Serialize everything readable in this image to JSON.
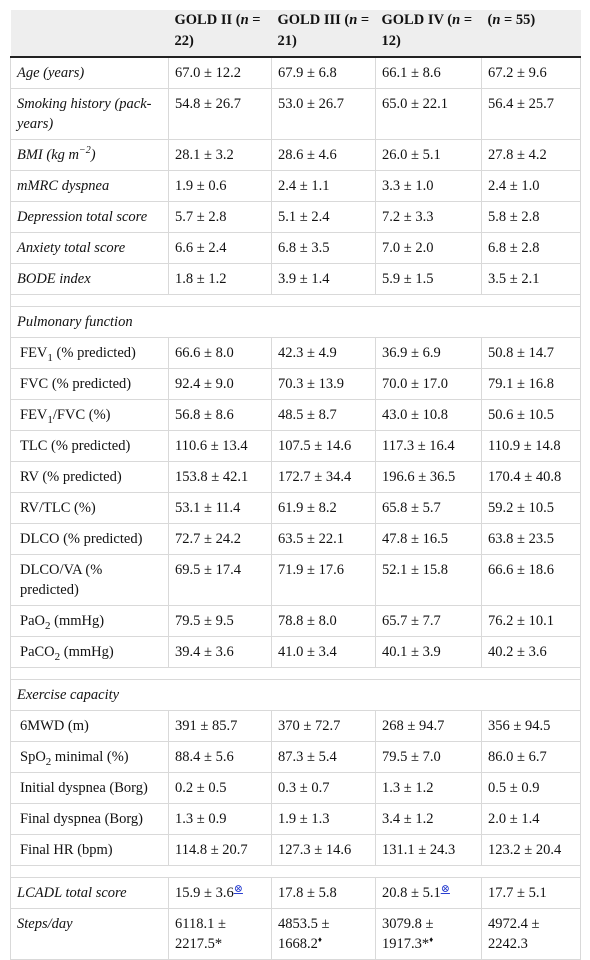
{
  "header": {
    "col0": "",
    "col1": "GOLD II (n = 22)",
    "col2": "GOLD III (n = 21)",
    "col3": "GOLD IV (n = 12)",
    "col4": "(n = 55)"
  },
  "rows": [
    {
      "label": "Age (years)",
      "v1": "67.0 ± 12.2",
      "v2": "67.9 ± 6.8",
      "v3": "66.1 ± 8.6",
      "v4": "67.2 ± 9.6"
    },
    {
      "label": "Smoking history (pack-years)",
      "v1": "54.8 ± 26.7",
      "v2": "53.0 ± 26.7",
      "v3": "65.0 ± 22.1",
      "v4": "56.4 ± 25.7"
    },
    {
      "label_a": "BMI (kg m",
      "label_sup": "−2",
      "label_b": ")",
      "v1": "28.1 ± 3.2",
      "v2": "28.6 ± 4.6",
      "v3": "26.0 ± 5.1",
      "v4": "27.8 ± 4.2"
    },
    {
      "label": "mMRC dyspnea",
      "v1": "1.9 ± 0.6",
      "v2": "2.4 ± 1.1",
      "v3": "3.3 ± 1.0",
      "v4": "2.4 ± 1.0"
    },
    {
      "label": "Depression total score",
      "v1": "5.7 ± 2.8",
      "v2": "5.1 ± 2.4",
      "v3": "7.2 ± 3.3",
      "v4": "5.8 ± 2.8"
    },
    {
      "label": "Anxiety total score",
      "v1": "6.6 ± 2.4",
      "v2": "6.8 ± 3.5",
      "v3": "7.0 ± 2.0",
      "v4": "6.8 ± 2.8"
    },
    {
      "label": "BODE index",
      "v1": "1.8 ± 1.2",
      "v2": "3.9 ± 1.4",
      "v3": "5.9 ± 1.5",
      "v4": "3.5 ± 2.1"
    },
    {
      "section": "Pulmonary function"
    },
    {
      "label_a": "FEV",
      "label_sub": "1",
      "label_b": " (% predicted)",
      "v1": "66.6 ± 8.0",
      "v2": "42.3 ± 4.9",
      "v3": "36.9 ± 6.9",
      "v4": "50.8 ± 14.7"
    },
    {
      "label": "FVC (% predicted)",
      "v1": "92.4 ± 9.0",
      "v2": "70.3 ± 13.9",
      "v3": "70.0 ± 17.0",
      "v4": "79.1 ± 16.8"
    },
    {
      "label_a": "FEV",
      "label_sub": "1",
      "label_b": "/FVC (%)",
      "v1": "56.8 ± 8.6",
      "v2": "48.5 ± 8.7",
      "v3": "43.0 ± 10.8",
      "v4": "50.6 ± 10.5"
    },
    {
      "label": "TLC (% predicted)",
      "v1": "110.6 ± 13.4",
      "v2": "107.5 ± 14.6",
      "v3": "117.3 ± 16.4",
      "v4": "110.9 ± 14.8"
    },
    {
      "label": "RV (% predicted)",
      "v1": "153.8 ± 42.1",
      "v2": "172.7 ± 34.4",
      "v3": "196.6 ± 36.5",
      "v4": "170.4 ± 40.8"
    },
    {
      "label": "RV/TLC (%)",
      "v1": "53.1 ± 11.4",
      "v2": "61.9 ± 8.2",
      "v3": "65.8 ± 5.7",
      "v4": "59.2 ± 10.5"
    },
    {
      "label": "DLCO (% predicted)",
      "v1": "72.7 ± 24.2",
      "v2": "63.5 ± 22.1",
      "v3": "47.8 ± 16.5",
      "v4": "63.8 ± 23.5"
    },
    {
      "label": "DLCO/VA (% predicted)",
      "v1": "69.5 ± 17.4",
      "v2": "71.9 ± 17.6",
      "v3": "52.1 ± 15.8",
      "v4": "66.6 ± 18.6"
    },
    {
      "label_a": "PaO",
      "label_sub": "2",
      "label_b": " (mmHg)",
      "v1": "79.5 ± 9.5",
      "v2": "78.8 ± 8.0",
      "v3": "65.7 ± 7.7",
      "v4": "76.2 ± 10.1"
    },
    {
      "label_a": "PaCO",
      "label_sub": "2",
      "label_b": " (mmHg)",
      "v1": "39.4 ± 3.6",
      "v2": "41.0 ± 3.4",
      "v3": "40.1 ± 3.9",
      "v4": "40.2 ± 3.6"
    },
    {
      "section": "Exercise capacity"
    },
    {
      "label": "6MWD (m)",
      "v1": "391 ± 85.7",
      "v2": "370 ± 72.7",
      "v3": "268 ± 94.7",
      "v4": "356 ± 94.5"
    },
    {
      "label_a": "SpO",
      "label_sub": "2",
      "label_b": " minimal (%)",
      "v1": "88.4 ± 5.6",
      "v2": "87.3 ± 5.4",
      "v3": "79.5 ± 7.0",
      "v4": "86.0 ± 6.7"
    },
    {
      "label": "Initial dyspnea (Borg)",
      "v1": "0.2 ± 0.5",
      "v2": "0.3 ± 0.7",
      "v3": "1.3 ± 1.2",
      "v4": "0.5 ± 0.9"
    },
    {
      "label": "Final dyspnea (Borg)",
      "v1": "1.3 ± 0.9",
      "v2": "1.9 ± 1.3",
      "v3": "3.4 ± 1.2",
      "v4": "2.0 ± 1.4"
    },
    {
      "label": "Final HR (bpm)",
      "v1": "114.8 ± 20.7",
      "v2": "127.3 ± 14.6",
      "v3": "131.1 ± 24.3",
      "v4": "123.2 ± 20.4"
    },
    {
      "label": "LCADL total score",
      "v1": "15.9 ± 3.6",
      "v1_mark": "⊗",
      "v2": "17.8 ± 5.8",
      "v3": "20.8 ± 5.1",
      "v3_mark": "⊗",
      "v4": "17.7 ± 5.1"
    },
    {
      "label": "Steps/day",
      "v1": "6118.1 ± 2217.5*",
      "v2": "4853.5 ± 1668.2",
      "v2_mark": "♦",
      "v3": "3079.8 ± 1917.3*",
      "v3_mark": "♦",
      "v4": "4972.4 ± 2242.3"
    }
  ]
}
